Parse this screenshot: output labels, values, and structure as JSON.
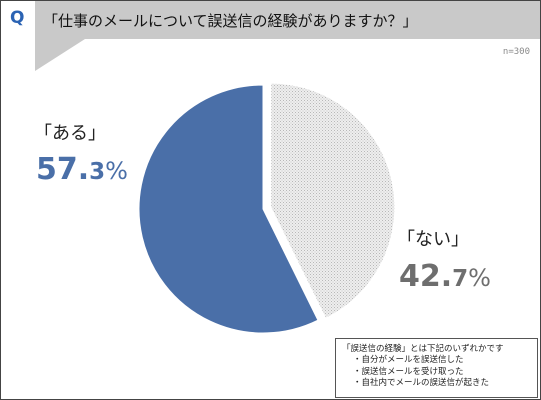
{
  "header": {
    "q_letter": "Q",
    "question": "「仕事のメールについて誤送信の経験がありますか？」",
    "banner_color": "#c9c9c9"
  },
  "sample_size": "n=300",
  "chart_data": {
    "type": "pie",
    "title": "「仕事のメールについて誤送信の経験がありますか？」",
    "slices": [
      {
        "name": "「ある」",
        "value": 57.3,
        "color": "#4a6fa8",
        "pct_int": "57.",
        "pct_dec": "3",
        "pct_unit": "%"
      },
      {
        "name": "「ない」",
        "value": 42.7,
        "color": "#e6e6e6",
        "pct_int": "42.",
        "pct_dec": "7",
        "pct_unit": "%"
      }
    ],
    "legend": "none",
    "start": "top",
    "direction": "counterclockwise",
    "exploded_slice": "「ない」"
  },
  "note": {
    "title": "「誤送信の経験」とは下記のいずれかです",
    "items": [
      "・自分がメールを誤送信した",
      "・誤送信メールを受け取った",
      "・自社内でメールの誤送信が起きた"
    ]
  }
}
